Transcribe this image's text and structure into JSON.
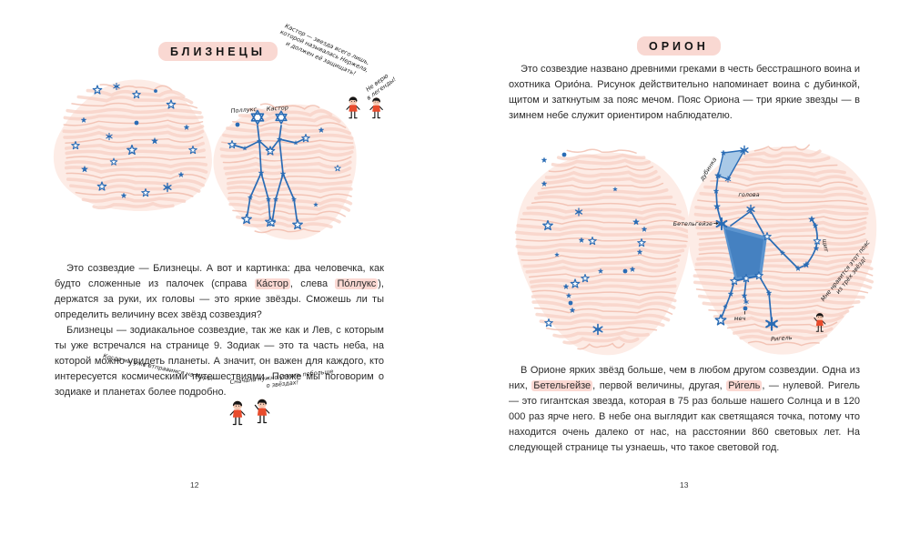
{
  "colors": {
    "accent_blue": "#2a6cb5",
    "pink_highlight": "#f9d8d2"
  },
  "left": {
    "title": "БЛИЗНЕЦЫ",
    "page_number": "12",
    "labels": {
      "pollux": "Поллукс",
      "castor": "Кастор"
    },
    "notes": {
      "castor": {
        "l1": "Кастор — звезда всего лишь,",
        "l2": "которой называлась Нержела,",
        "l3": "и должен её защищать!"
      },
      "reply": {
        "l1": "Не верю",
        "l2": "в легенды!"
      },
      "mars": "Когда мы уже отправимся на Марс?",
      "stars": {
        "l1": "Сначала нужно узнать побольше",
        "l2": "о звёздах!"
      }
    },
    "p1": [
      "Это созвездие — Близнецы. А вот и картинка: два человечка, как будто сложенные из палочек (справа ",
      "Ка́стор",
      ", слева ",
      "По́ллукс",
      "), держатся за руки, их головы — это яркие звёзды. Сможешь ли ты определить величину всех звёзд созвездия?"
    ],
    "p2": "Близнецы — зодиакальное созвездие, так же как и Лев, с которым ты уже встречался на странице 9. Зодиак — это та часть неба, на которой можно увидеть планеты. А значит, он важен для каждого, кто интересуется космическими путешествиями. Позже мы поговорим о зодиаке и планетах более подробно."
  },
  "right": {
    "title": "ОРИОН",
    "page_number": "13",
    "labels": {
      "club": "дубинка",
      "head": "голова",
      "betelgeuse": "Бетельгейзе",
      "shield": "щит",
      "sword": "меч",
      "rigel": "Ригель"
    },
    "notes": {
      "belt": {
        "l1": "Мне нравится этот пояс",
        "l2": "из трёх звёзд!"
      }
    },
    "p1": "Это созвездие названо древними греками в честь бесстрашного воина и охотника Орио́на. Рисунок действительно напоминает воина с дубинкой, щитом и заткнутым за пояс мечом. Пояс Ориона — три яркие звезды — в зимнем небе служит ориентиром наблюдателю.",
    "p2": [
      "В Орионе ярких звёзд больше, чем в любом другом созвездии. Одна из них, ",
      "Бетельгейзе",
      ", первой величины, другая, ",
      "Ри́гель",
      ", — нулевой. Ригель — это гигантская звезда, которая в 75 раз больше нашего Солнца и в 120 000 раз ярче него. В небе она выглядит как светящаяся точка, потому что находится очень далеко от нас, на расстоянии 860 световых лет. На следующей странице ты узнаешь, что такое световой год."
    ]
  }
}
